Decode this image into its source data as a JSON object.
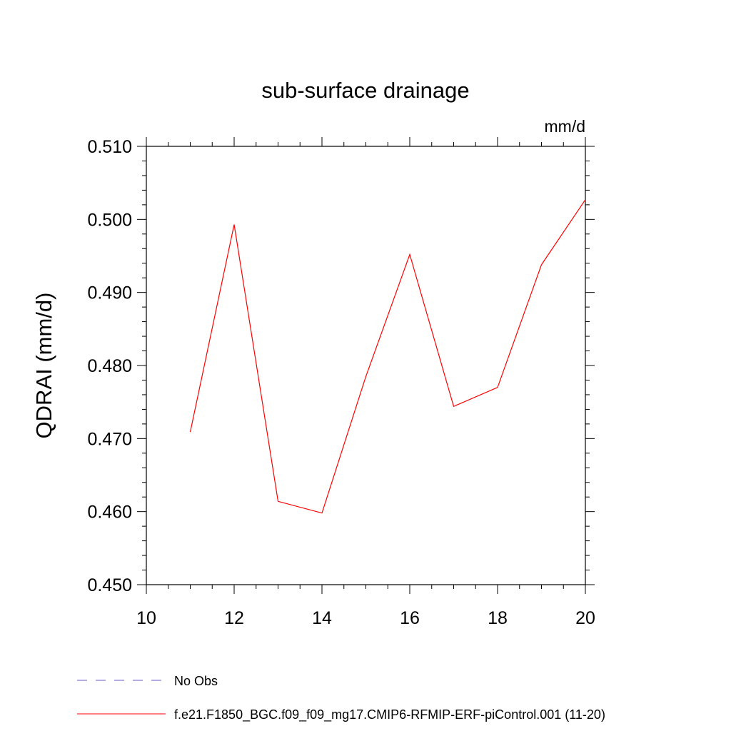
{
  "chart_data": {
    "type": "line",
    "title": "sub-surface drainage",
    "units_label": "mm/d",
    "ylabel": "QDRAI  (mm/d)",
    "xlabel": "",
    "xlim": [
      10,
      20
    ],
    "ylim": [
      0.45,
      0.51
    ],
    "x_ticks": [
      10,
      12,
      14,
      16,
      18,
      20
    ],
    "x_tick_labels": [
      "10",
      "12",
      "14",
      "16",
      "18",
      "20"
    ],
    "y_ticks": [
      0.45,
      0.46,
      0.47,
      0.48,
      0.49,
      0.5,
      0.51
    ],
    "y_tick_labels": [
      "0.450",
      "0.460",
      "0.470",
      "0.480",
      "0.490",
      "0.500",
      "0.510"
    ],
    "grid": false,
    "legend_position": "bottom",
    "series": [
      {
        "name": "f.e21.F1850_BGC.f09_f09_mg17.CMIP6-RFMIP-ERF-piControl.001 (11-20)",
        "color": "#ff0000",
        "dash": "solid",
        "x": [
          11,
          12,
          13,
          14,
          15,
          16,
          17,
          18,
          19,
          20
        ],
        "y": [
          0.4709,
          0.4993,
          0.4614,
          0.4598,
          0.4785,
          0.4952,
          0.4744,
          0.477,
          0.4938,
          0.5027
        ]
      }
    ],
    "legend": [
      {
        "label": "No Obs",
        "color": "#6a5acd",
        "dash": "dashed"
      },
      {
        "label": "f.e21.F1850_BGC.f09_f09_mg17.CMIP6-RFMIP-ERF-piControl.001 (11-20)",
        "color": "#ff0000",
        "dash": "solid"
      }
    ]
  }
}
